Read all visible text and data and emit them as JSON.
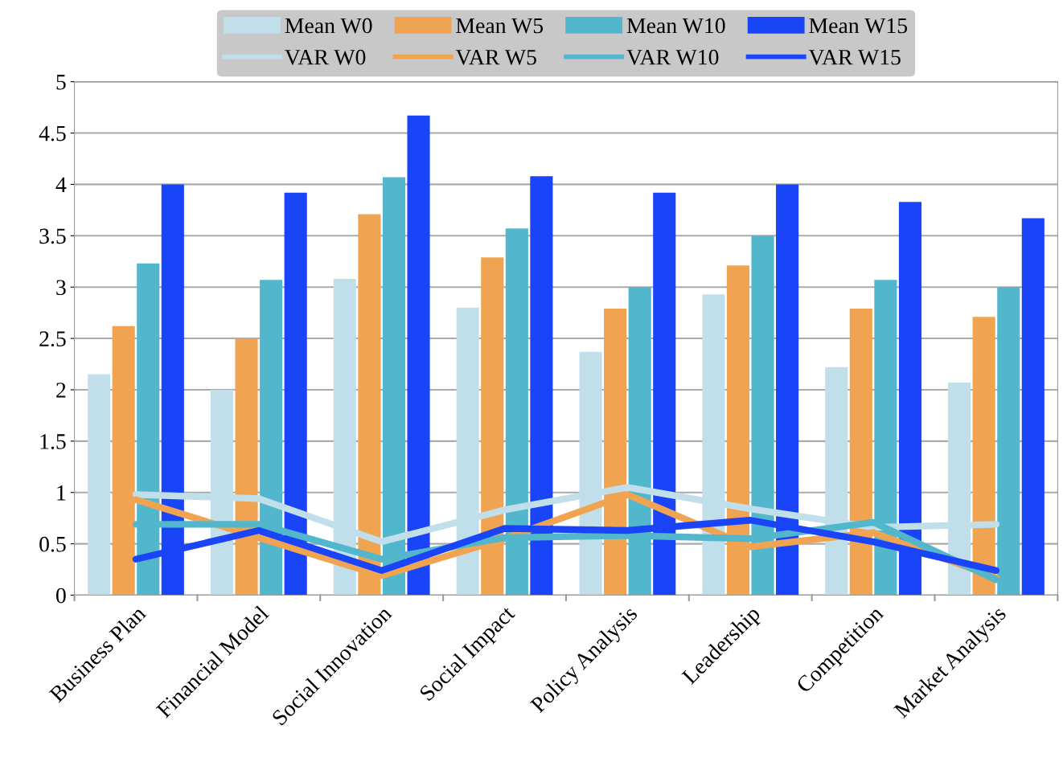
{
  "chart_data": {
    "type": "bar",
    "categories": [
      "Business Plan",
      "Financial Model",
      "Social Innovation",
      "Social Impact",
      "Policy Analysis",
      "Leadership",
      "Competition",
      "Market Analysis"
    ],
    "series": [
      {
        "name": "Mean W0",
        "color": "#c0dfea",
        "values": [
          2.15,
          2.0,
          3.08,
          2.8,
          2.37,
          2.93,
          2.22,
          2.07
        ]
      },
      {
        "name": "Mean W5",
        "color": "#f0a452",
        "values": [
          2.62,
          2.5,
          3.71,
          3.29,
          2.79,
          3.21,
          2.79,
          2.71
        ]
      },
      {
        "name": "Mean W10",
        "color": "#52b7cc",
        "values": [
          3.23,
          3.07,
          4.07,
          3.57,
          3.0,
          3.5,
          3.07,
          3.0
        ]
      },
      {
        "name": "Mean W15",
        "color": "#1a44f8",
        "values": [
          4.0,
          3.92,
          4.67,
          4.08,
          3.92,
          4.0,
          3.83,
          3.67
        ]
      },
      {
        "name": "VAR W0",
        "type": "line",
        "color": "#c0dfea",
        "values": [
          0.98,
          0.94,
          0.52,
          0.83,
          1.05,
          0.84,
          0.66,
          0.69
        ]
      },
      {
        "name": "VAR W5",
        "type": "line",
        "color": "#f0a452",
        "values": [
          0.93,
          0.56,
          0.19,
          0.55,
          0.98,
          0.47,
          0.61,
          0.17
        ]
      },
      {
        "name": "VAR W10",
        "type": "line",
        "color": "#52b7cc",
        "values": [
          0.69,
          0.69,
          0.35,
          0.56,
          0.58,
          0.55,
          0.71,
          0.15
        ]
      },
      {
        "name": "VAR W15",
        "type": "line",
        "color": "#1a44f8",
        "values": [
          0.35,
          0.63,
          0.24,
          0.65,
          0.63,
          0.73,
          0.52,
          0.24
        ]
      }
    ],
    "ylim": [
      0,
      5
    ],
    "yticks": [
      0,
      0.5,
      1,
      1.5,
      2,
      2.5,
      3,
      3.5,
      4,
      4.5,
      5
    ],
    "grid": "y",
    "legend": "top",
    "line_style": "solid",
    "marker": "none"
  }
}
